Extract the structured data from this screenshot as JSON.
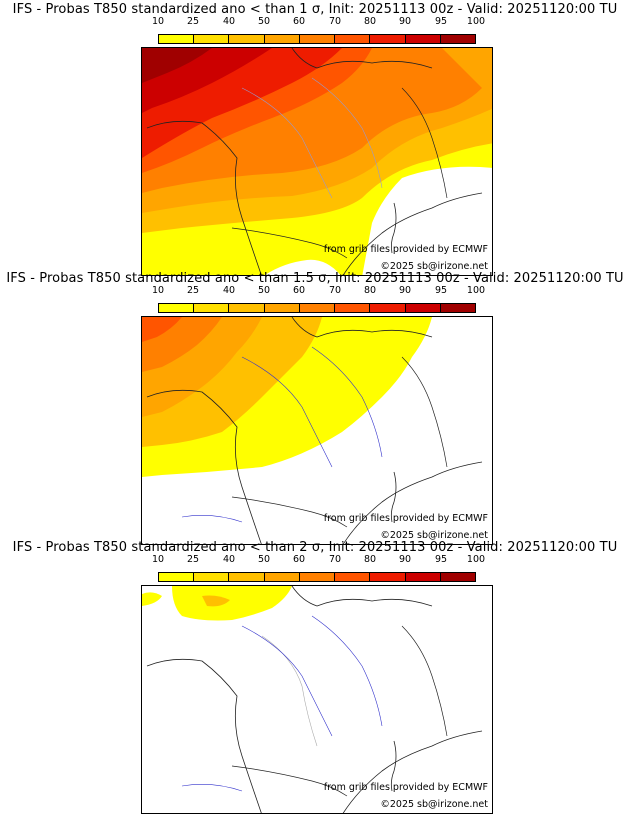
{
  "colorbar": {
    "ticks": [
      "10",
      "25",
      "40",
      "50",
      "60",
      "70",
      "80",
      "90",
      "95",
      "100"
    ],
    "colors": [
      "#ffff00",
      "#ffe000",
      "#ffc000",
      "#ffa500",
      "#ff8000",
      "#ff5500",
      "#ee1c00",
      "#cc0000",
      "#a00000",
      "#6a0000"
    ]
  },
  "panels": [
    {
      "title": "IFS - Probas T850  standardized ano < than 1 σ, Init: 20251113 00z - Valid: 20251120:00 TU",
      "credit_source": "from grib files provided by ECMWF",
      "credit_copyright": "©2025 sb@irizone.net",
      "threshold": "1 σ"
    },
    {
      "title": "IFS - Probas T850  standardized ano < than 1.5 σ, Init: 20251113 00z - Valid: 20251120:00 TU",
      "credit_source": "from grib files provided by ECMWF",
      "credit_copyright": "©2025 sb@irizone.net",
      "threshold": "1.5 σ"
    },
    {
      "title": "IFS - Probas T850  standardized ano < than 2 σ, Init: 20251113 00z - Valid: 20251120:00 TU",
      "credit_source": "from grib files provided by ECMWF",
      "credit_copyright": "©2025 sb@irizone.net",
      "threshold": "2 σ"
    }
  ]
}
